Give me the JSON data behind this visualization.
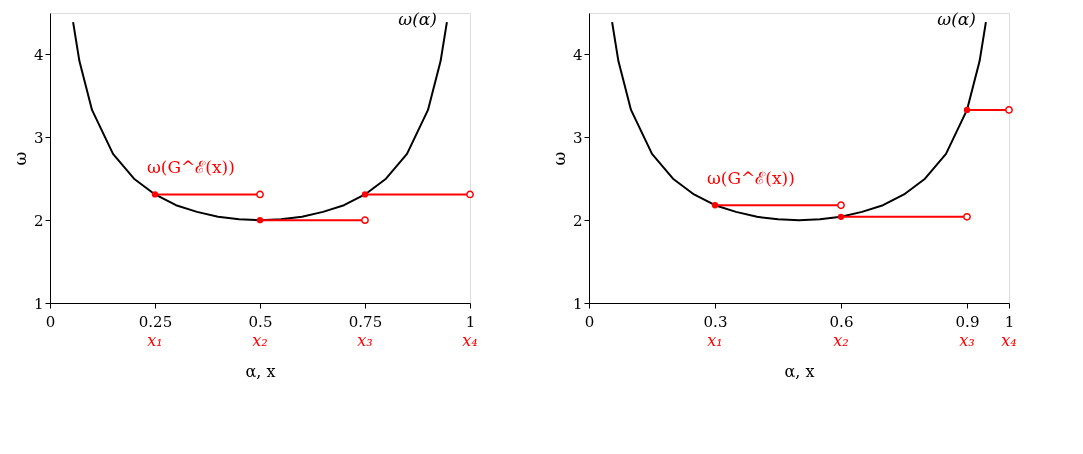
{
  "chart_data": [
    {
      "type": "line",
      "xlabel": "α, x",
      "ylabel": "ω",
      "xlim": [
        0,
        1
      ],
      "ylim": [
        1,
        4.5
      ],
      "xticks": [
        0,
        0.25,
        0.5,
        0.75,
        1
      ],
      "yticks": [
        1,
        2,
        3,
        4
      ],
      "grid": false,
      "series": [
        {
          "name": "ω(α)",
          "color": "#000000",
          "x": [
            0.055,
            0.07,
            0.1,
            0.15,
            0.2,
            0.25,
            0.3,
            0.35,
            0.4,
            0.45,
            0.5,
            0.55,
            0.6,
            0.65,
            0.7,
            0.75,
            0.8,
            0.85,
            0.9,
            0.93,
            0.945
          ],
          "values": [
            4.39,
            3.92,
            3.33,
            2.8,
            2.5,
            2.31,
            2.18,
            2.1,
            2.04,
            2.01,
            2.0,
            2.01,
            2.04,
            2.1,
            2.18,
            2.31,
            2.5,
            2.8,
            3.33,
            3.92,
            4.39
          ]
        },
        {
          "name": "ω(G^ℰ(x))",
          "color": "#ff0000",
          "marker": "circle",
          "x": [
            0.25,
            0.5
          ],
          "values": [
            2.31,
            2.31
          ]
        },
        {
          "color": "#ff0000",
          "marker": "circle",
          "x": [
            0.5,
            0.75
          ],
          "values": [
            2.0,
            2.0
          ]
        },
        {
          "color": "#ff0000",
          "marker": "circle",
          "x": [
            0.75,
            1
          ],
          "values": [
            2.31,
            2.31
          ]
        }
      ],
      "annotations": [
        "x₁",
        "x₂",
        "x₃",
        "x₄"
      ]
    },
    {
      "type": "line",
      "xlabel": "α, x",
      "ylabel": "ω",
      "xlim": [
        0,
        1
      ],
      "ylim": [
        1,
        4.5
      ],
      "xticks": [
        0,
        0.3,
        0.6,
        0.9,
        1
      ],
      "yticks": [
        1,
        2,
        3,
        4
      ],
      "grid": false,
      "series": [
        {
          "name": "ω(α)",
          "color": "#000000",
          "x": [
            0.055,
            0.07,
            0.1,
            0.15,
            0.2,
            0.25,
            0.3,
            0.35,
            0.4,
            0.45,
            0.5,
            0.55,
            0.6,
            0.65,
            0.7,
            0.75,
            0.8,
            0.85,
            0.9,
            0.93,
            0.945
          ],
          "values": [
            4.39,
            3.92,
            3.33,
            2.8,
            2.5,
            2.31,
            2.18,
            2.1,
            2.04,
            2.01,
            2.0,
            2.01,
            2.04,
            2.1,
            2.18,
            2.31,
            2.5,
            2.8,
            3.33,
            3.92,
            4.39
          ]
        },
        {
          "name": "ω(G^ℰ(x))",
          "color": "#ff0000",
          "marker": "circle",
          "x": [
            0.3,
            0.6
          ],
          "values": [
            2.18,
            2.18
          ]
        },
        {
          "color": "#ff0000",
          "marker": "circle",
          "x": [
            0.6,
            0.9
          ],
          "values": [
            2.04,
            2.04
          ]
        },
        {
          "color": "#ff0000",
          "marker": "circle",
          "x": [
            0.9,
            1
          ],
          "values": [
            3.33,
            3.33
          ]
        }
      ],
      "annotations": [
        "x₁",
        "x₂",
        "x₃",
        "x₄"
      ]
    }
  ]
}
